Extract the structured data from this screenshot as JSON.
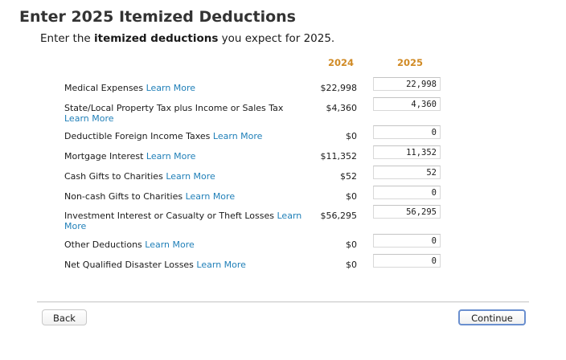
{
  "header": {
    "title": "Enter 2025 Itemized Deductions",
    "subtitle_prefix": "Enter the ",
    "subtitle_bold": "itemized deductions",
    "subtitle_suffix": " you expect for 2025."
  },
  "columns": {
    "prior_year": "2024",
    "current_year": "2025"
  },
  "rows": [
    {
      "label": "Medical Expenses",
      "learn_more": "Learn More",
      "prior": "$22,998",
      "value": "22,998"
    },
    {
      "label": "State/Local Property Tax plus Income or Sales Tax",
      "learn_more": "Learn More",
      "prior": "$4,360",
      "value": "4,360"
    },
    {
      "label": "Deductible Foreign Income Taxes",
      "learn_more": "Learn More",
      "prior": "$0",
      "value": "0"
    },
    {
      "label": "Mortgage Interest",
      "learn_more": "Learn More",
      "prior": "$11,352",
      "value": "11,352"
    },
    {
      "label": "Cash Gifts to Charities",
      "learn_more": "Learn More",
      "prior": "$52",
      "value": "52"
    },
    {
      "label": "Non-cash Gifts to Charities",
      "learn_more": "Learn More",
      "prior": "$0",
      "value": "0"
    },
    {
      "label": "Investment Interest or Casualty or Theft Losses",
      "learn_more": "Learn More",
      "prior": "$56,295",
      "value": "56,295"
    },
    {
      "label": "Other Deductions",
      "learn_more": "Learn More",
      "prior": "$0",
      "value": "0"
    },
    {
      "label": "Net Qualified Disaster Losses",
      "learn_more": "Learn More",
      "prior": "$0",
      "value": "0"
    }
  ],
  "footer": {
    "back_label": "Back",
    "continue_label": "Continue"
  }
}
